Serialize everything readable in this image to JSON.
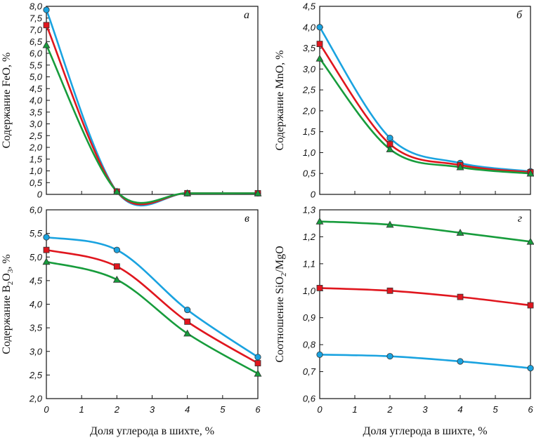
{
  "xlabel": "Доля углерода в шихте, %",
  "x_ticks": [
    "0",
    "1",
    "2",
    "3",
    "4",
    "5",
    "6"
  ],
  "series_colors": [
    "#1aa3e0",
    "#e0161e",
    "#179c3c"
  ],
  "series_markers": [
    "circle",
    "square",
    "triangle"
  ],
  "chart_data": [
    {
      "type": "line",
      "panel_letter": "а",
      "ylabel": "Содержание FeO, %",
      "x": [
        0,
        2,
        4,
        6
      ],
      "xlim": [
        0,
        6
      ],
      "ylim": [
        0,
        8
      ],
      "y_ticks": [
        "0",
        "0,5",
        "1,0",
        "1,5",
        "2,0",
        "2,5",
        "3,0",
        "3,5",
        "4,0",
        "4,5",
        "5,0",
        "5,5",
        "6,0",
        "6,5",
        "7,0",
        "7,5",
        "8,0"
      ],
      "series": [
        {
          "values": [
            7.85,
            0.12,
            0.05,
            0.05
          ]
        },
        {
          "values": [
            7.2,
            0.12,
            0.05,
            0.05
          ]
        },
        {
          "values": [
            6.35,
            0.12,
            0.05,
            0.05
          ]
        }
      ]
    },
    {
      "type": "line",
      "panel_letter": "б",
      "ylabel": "Содержание MnO, %",
      "x": [
        0,
        2,
        4,
        6
      ],
      "xlim": [
        0,
        6
      ],
      "ylim": [
        0,
        4.5
      ],
      "y_ticks": [
        "0",
        "0,5",
        "1,0",
        "1,5",
        "2,0",
        "2,5",
        "3,0",
        "3,5",
        "4,0",
        "4,5"
      ],
      "series": [
        {
          "values": [
            4.0,
            1.35,
            0.75,
            0.55
          ]
        },
        {
          "values": [
            3.6,
            1.2,
            0.7,
            0.53
          ]
        },
        {
          "values": [
            3.25,
            1.08,
            0.65,
            0.5
          ]
        }
      ]
    },
    {
      "type": "line",
      "panel_letter": "в",
      "ylabel": "Содержание B2O3, %",
      "x": [
        0,
        2,
        4,
        6
      ],
      "xlim": [
        0,
        6
      ],
      "ylim": [
        2.0,
        6.0
      ],
      "y_ticks": [
        "2,0",
        "2,5",
        "3,0",
        "3,5",
        "4,0",
        "4,5",
        "5,0",
        "5,5",
        "6,0"
      ],
      "series": [
        {
          "values": [
            5.42,
            5.15,
            3.88,
            2.88
          ]
        },
        {
          "values": [
            5.15,
            4.8,
            3.63,
            2.75
          ]
        },
        {
          "values": [
            4.9,
            4.52,
            3.38,
            2.53
          ]
        }
      ]
    },
    {
      "type": "line",
      "panel_letter": "г",
      "ylabel": "Соотношение SiO2/MgO",
      "x": [
        0,
        2,
        4,
        6
      ],
      "xlim": [
        0,
        6
      ],
      "ylim": [
        0.6,
        1.3
      ],
      "y_ticks": [
        "0,6",
        "0,7",
        "0,8",
        "0,9",
        "1,0",
        "1,1",
        "1,2",
        "1,3"
      ],
      "series": [
        {
          "values": [
            0.763,
            0.757,
            0.738,
            0.713
          ]
        },
        {
          "values": [
            1.01,
            1.0,
            0.977,
            0.946
          ]
        },
        {
          "values": [
            1.257,
            1.245,
            1.215,
            1.182
          ]
        }
      ]
    }
  ]
}
